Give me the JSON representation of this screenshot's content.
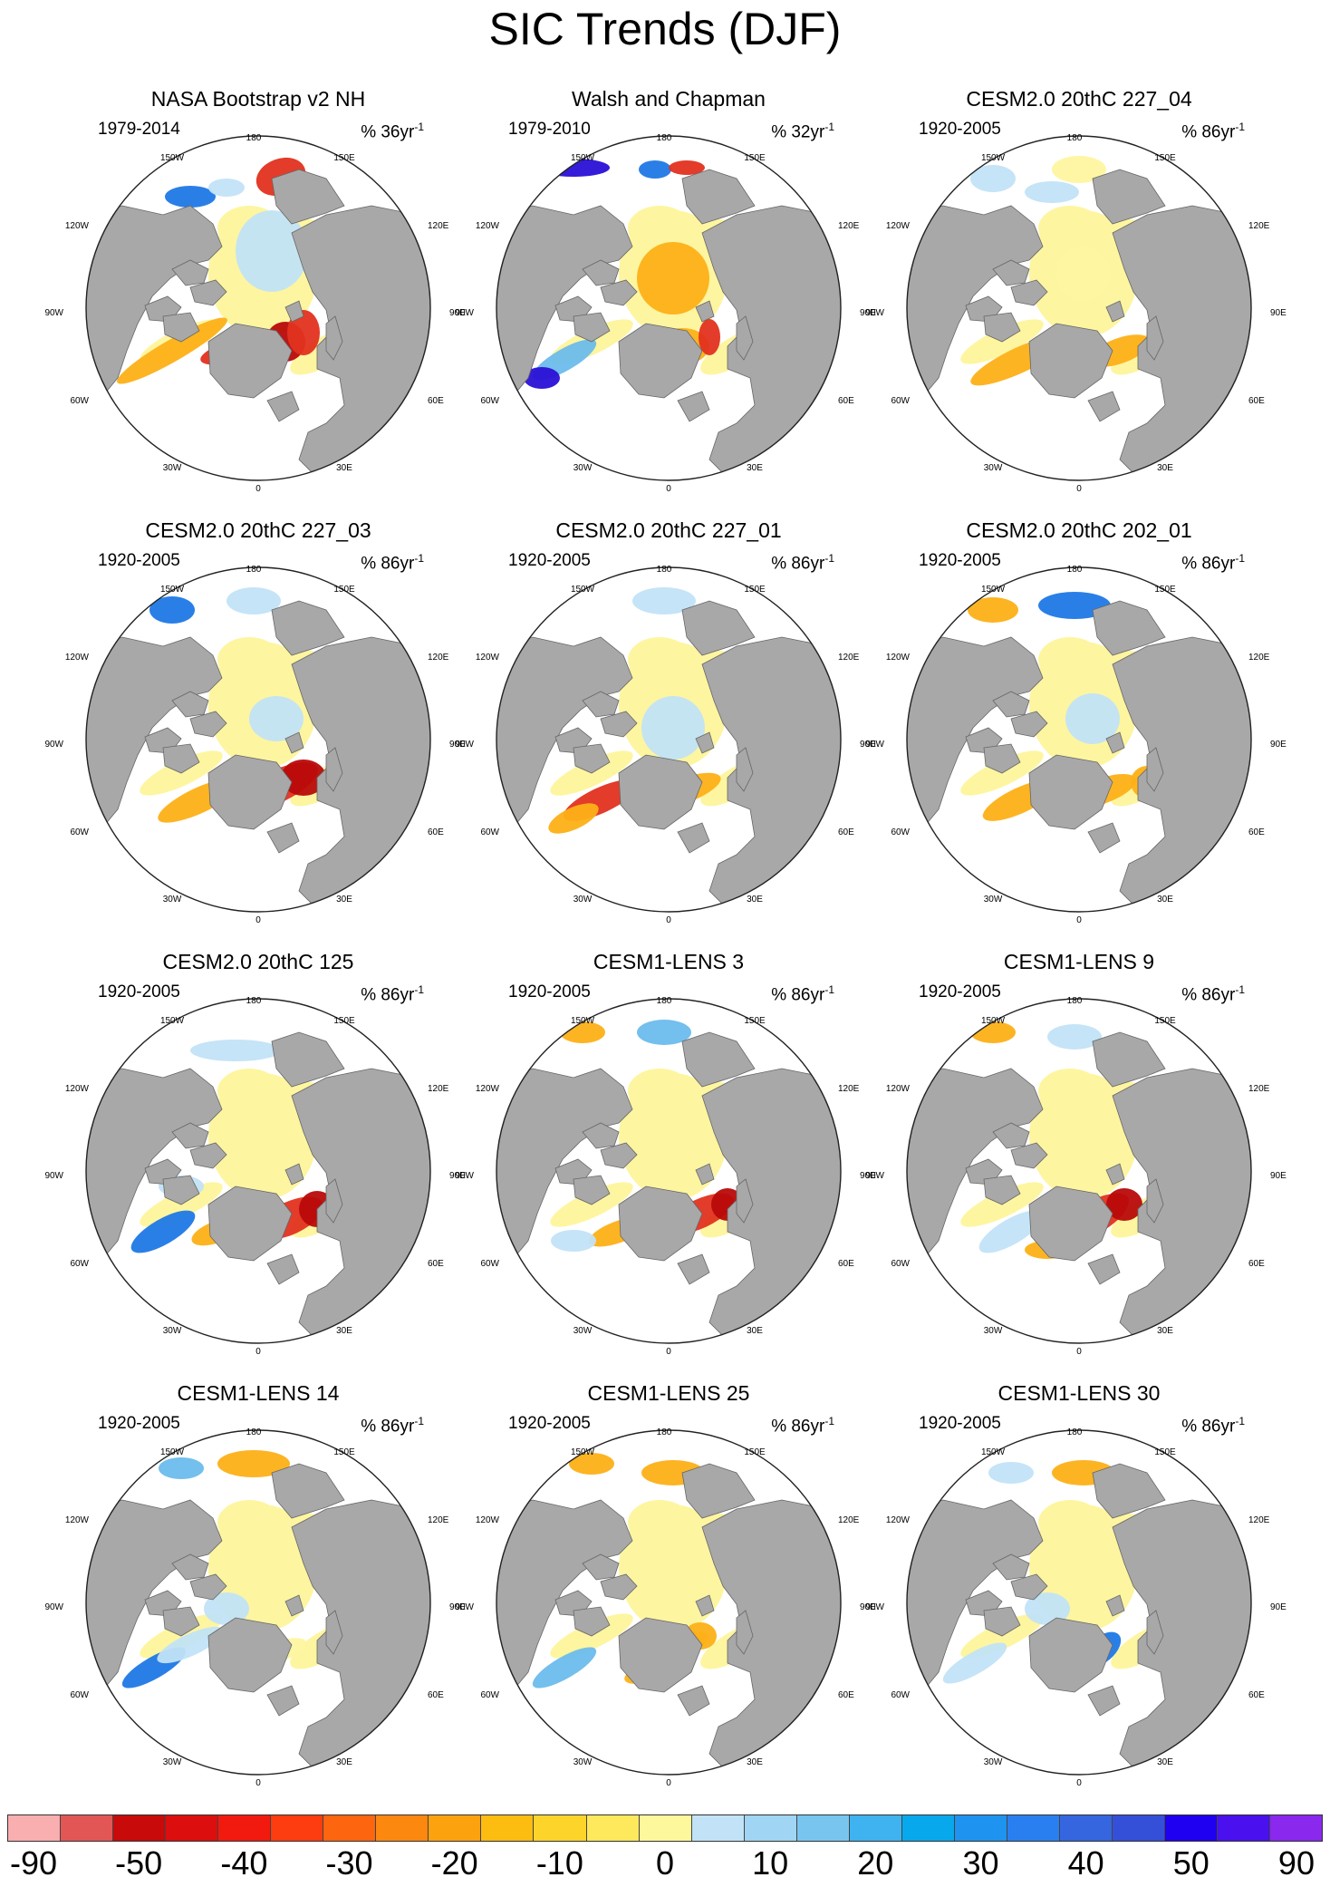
{
  "title": "SIC Trends (DJF)",
  "axis_labels": [
    "180",
    "150W",
    "150E",
    "120W",
    "120E",
    "90W",
    "90E",
    "60W",
    "60E",
    "30W",
    "30E",
    "0"
  ],
  "colors": {
    "land": "#a8a8a8",
    "ocean": "#ffffff",
    "yellow": "#fef5a0",
    "pale_blue": "#c2e3f7",
    "mid_blue": "#6cbcec",
    "orange": "#fdb017",
    "red": "#e2321f",
    "dark_red": "#b80a0a",
    "blue": "#1f78e6",
    "dark_blue": "#2a10d6"
  },
  "panels": [
    {
      "title": "NASA Bootstrap v2 NH",
      "years": "1979-2014",
      "units": "% 36yr",
      "sup": "-1"
    },
    {
      "title": "Walsh and Chapman",
      "years": "1979-2010",
      "units": "% 32yr",
      "sup": "-1"
    },
    {
      "title": "CESM2.0 20thC 227_04",
      "years": "1920-2005",
      "units": "% 86yr",
      "sup": "-1"
    },
    {
      "title": "CESM2.0 20thC 227_03",
      "years": "1920-2005",
      "units": "% 86yr",
      "sup": "-1"
    },
    {
      "title": "CESM2.0 20thC 227_01",
      "years": "1920-2005",
      "units": "% 86yr",
      "sup": "-1"
    },
    {
      "title": "CESM2.0 20thC 202_01",
      "years": "1920-2005",
      "units": "% 86yr",
      "sup": "-1"
    },
    {
      "title": "CESM2.0 20thC 125",
      "years": "1920-2005",
      "units": "% 86yr",
      "sup": "-1"
    },
    {
      "title": "CESM1-LENS 3",
      "years": "1920-2005",
      "units": "% 86yr",
      "sup": "-1"
    },
    {
      "title": "CESM1-LENS 9",
      "years": "1920-2005",
      "units": "% 86yr",
      "sup": "-1"
    },
    {
      "title": "CESM1-LENS 14",
      "years": "1920-2005",
      "units": "% 86yr",
      "sup": "-1"
    },
    {
      "title": "CESM1-LENS 25",
      "years": "1920-2005",
      "units": "% 86yr",
      "sup": "-1"
    },
    {
      "title": "CESM1-LENS 30",
      "years": "1920-2005",
      "units": "% 86yr",
      "sup": "-1"
    }
  ],
  "colorbar": {
    "colors": [
      "#f9aeb0",
      "#e25656",
      "#c80a0a",
      "#dc0e0e",
      "#f21a0f",
      "#fd3c0f",
      "#fd650f",
      "#fd880f",
      "#fda20f",
      "#fdbc10",
      "#fdd52a",
      "#fee85c",
      "#fef89c",
      "#c2e3f7",
      "#a0d5f3",
      "#78c6f0",
      "#3fb2f0",
      "#08a8ec",
      "#1e94f0",
      "#2a7ff0",
      "#3566e0",
      "#3550d8",
      "#1f00f0",
      "#4a10ee",
      "#8a28ee"
    ],
    "labels": [
      "-90",
      "-50",
      "-40",
      "-30",
      "-20",
      "-10",
      "0",
      "10",
      "20",
      "30",
      "40",
      "50",
      "90"
    ]
  }
}
